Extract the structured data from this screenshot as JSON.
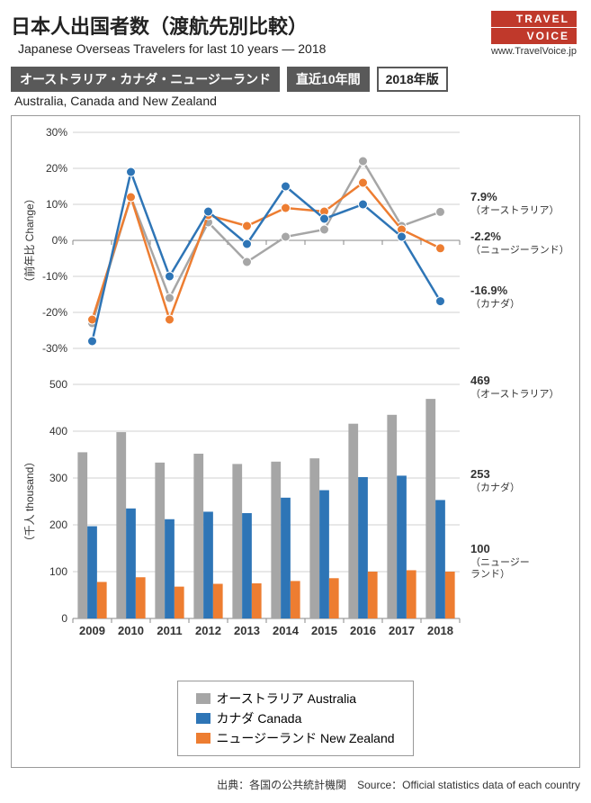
{
  "header": {
    "title_ja": "日本人出国者数（渡航先別比較）",
    "title_en": "Japanese Overseas Travelers for last 10 years — 2018",
    "logo_top": "TRAVEL",
    "logo_bottom": "VOICE",
    "logo_url": "www.TravelVoice.jp"
  },
  "subhead": {
    "dark": "オーストラリア・カナダ・ニュージーランド",
    "period": "直近10年間",
    "edition": "2018年版",
    "en": "Australia, Canada and New Zealand"
  },
  "years": [
    "2009",
    "2010",
    "2011",
    "2012",
    "2013",
    "2014",
    "2015",
    "2016",
    "2017",
    "2018"
  ],
  "colors": {
    "australia": "#a6a6a6",
    "canada": "#2e75b6",
    "newzealand": "#ed7d31",
    "grid": "#d0d0d0",
    "axis": "#888888",
    "text": "#333333",
    "box_border": "#999999",
    "bg": "#ffffff",
    "marker_stroke": "#ffffff"
  },
  "line_chart": {
    "type": "line",
    "ylabel_ja": "（前年比",
    "ylabel_en": "Change）",
    "ylim": [
      -30,
      30
    ],
    "ytick_step": 10,
    "label_fontsize": 12,
    "tick_fontsize": 12,
    "line_width": 2.5,
    "marker_radius": 5,
    "series": {
      "australia": [
        -23,
        12,
        -16,
        5,
        -6,
        1,
        3,
        22,
        4,
        7.9
      ],
      "canada": [
        -28,
        19,
        -10,
        8,
        -1,
        15,
        6,
        10,
        1,
        -16.9
      ],
      "newzealand": [
        -22,
        12,
        -22,
        7,
        4,
        9,
        8,
        16,
        3,
        -2.2
      ]
    },
    "end_labels": [
      {
        "value": "7.9%",
        "name": "（オーストラリア）",
        "y": 7.9,
        "bold": true
      },
      {
        "value": "-2.2%",
        "name": "（ニュージーランド）",
        "y": -2.2,
        "bold": true
      },
      {
        "value": "-16.9%",
        "name": "（カナダ）",
        "y": -16.9,
        "bold": true
      }
    ]
  },
  "bar_chart": {
    "type": "bar",
    "ylabel_ja": "（千人",
    "ylabel_en": "thousand）",
    "ylim": [
      0,
      500
    ],
    "ytick_step": 100,
    "label_fontsize": 12,
    "tick_fontsize": 12,
    "bar_group_width": 0.75,
    "series": {
      "australia": [
        355,
        398,
        333,
        352,
        330,
        335,
        342,
        416,
        435,
        469
      ],
      "canada": [
        197,
        235,
        212,
        228,
        225,
        258,
        274,
        302,
        305,
        253
      ],
      "newzealand": [
        78,
        88,
        68,
        74,
        75,
        80,
        86,
        100,
        103,
        100
      ]
    },
    "end_labels": [
      {
        "value": "469",
        "name": "（オーストラリア）",
        "y": 469
      },
      {
        "value": "253",
        "name": "（カナダ）",
        "y": 253
      },
      {
        "value": "100",
        "name": "（ニュージー\nランド）",
        "y": 100
      }
    ]
  },
  "legend": [
    {
      "swatch_color": "#a6a6a6",
      "label": "オーストラリア Australia"
    },
    {
      "swatch_color": "#2e75b6",
      "label": "カナダ Canada"
    },
    {
      "swatch_color": "#ed7d31",
      "label": "ニュージーランド New Zealand"
    }
  ],
  "source": "出典：各国の公共統計機関　Source：Official statistics data of each country"
}
